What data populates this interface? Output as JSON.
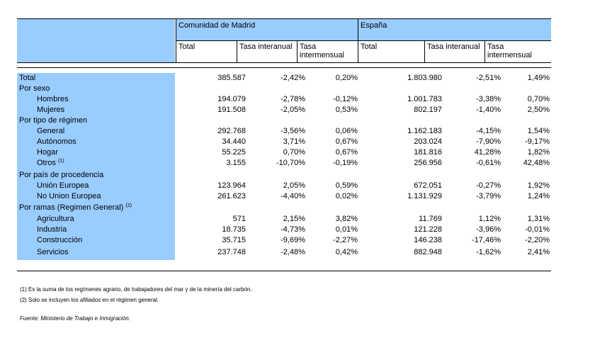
{
  "header": {
    "group1": "Comunidad de Madrid",
    "group2": "España",
    "cols": [
      "Total",
      "Tasa interanual",
      "Tasa intermensual",
      "Total",
      "Tasa interanual",
      "Tasa intermensual"
    ]
  },
  "rows": [
    {
      "label": "Total",
      "sub": false,
      "values": [
        "385.587",
        "-2,42%",
        "0,20%",
        "1.803.980",
        "-2,51%",
        "1,49%"
      ]
    },
    {
      "label": "Por sexo",
      "sub": false,
      "values": []
    },
    {
      "label": "Hombres",
      "sub": true,
      "values": [
        "194.079",
        "-2,78%",
        "-0,12%",
        "1.001.783",
        "-3,38%",
        "0,70%"
      ]
    },
    {
      "label": "Mujeres",
      "sub": true,
      "values": [
        "191.508",
        "-2,05%",
        "0,53%",
        "802.197",
        "-1,40%",
        "2,50%"
      ]
    },
    {
      "label": "Por tipo de régimen",
      "sub": false,
      "values": []
    },
    {
      "label": "General",
      "sub": true,
      "values": [
        "292.768",
        "-3,56%",
        "0,06%",
        "1.162.183",
        "-4,15%",
        "1,54%"
      ]
    },
    {
      "label": "Autónomos",
      "sub": true,
      "values": [
        "34.440",
        "3,71%",
        "0,67%",
        "203.024",
        "-7,90%",
        "-9,17%"
      ]
    },
    {
      "label": "Hogar",
      "sub": true,
      "values": [
        "55.225",
        "0,70%",
        "0,67%",
        "181.816",
        "41,28%",
        "1,82%"
      ]
    },
    {
      "label": "Otros",
      "sup": "(1)",
      "sub": true,
      "values": [
        "3.155",
        "-10,70%",
        "-0,19%",
        "256.956",
        "-0,61%",
        "42,48%"
      ]
    },
    {
      "label": "Por país de procedencia",
      "sub": false,
      "values": []
    },
    {
      "label": "Unión Europea",
      "sub": true,
      "values": [
        "123.964",
        "2,05%",
        "0,59%",
        "672.051",
        "-0,27%",
        "1,92%"
      ]
    },
    {
      "label": "No Union Europea",
      "sub": true,
      "values": [
        "261.623",
        "-4,40%",
        "0,02%",
        "1.131.929",
        "-3,79%",
        "1,24%"
      ]
    },
    {
      "label": "Por ramas (Regimen General)",
      "sup": "(2)",
      "sub": false,
      "values": []
    },
    {
      "label": "Agricultura",
      "sub": true,
      "values": [
        "571",
        "2,15%",
        "3,82%",
        "11.769",
        "1,12%",
        "1,31%"
      ]
    },
    {
      "label": "Industria",
      "sub": true,
      "values": [
        "18.735",
        "-4,73%",
        "0,01%",
        "121.228",
        "-3,96%",
        "-0,01%"
      ]
    },
    {
      "label": "Construcción",
      "sub": true,
      "values": [
        "35.715",
        "-9,69%",
        "-2,27%",
        "146.238",
        "-17,46%",
        "-2,20%"
      ]
    },
    {
      "label": "Servicios",
      "sub": true,
      "values": [
        "237.748",
        "-2,48%",
        "0,42%",
        "882.948",
        "-1,62%",
        "2,41%"
      ]
    }
  ],
  "notes": [
    "(1) Es la suma de los regímenes  agrario, de trabajadores del mar y de la minería del carbón.",
    "(2) Solo se incluyen los afiliados en el régimen general."
  ],
  "source": "Fuente: Ministerio de Trabajo e Inmigración."
}
